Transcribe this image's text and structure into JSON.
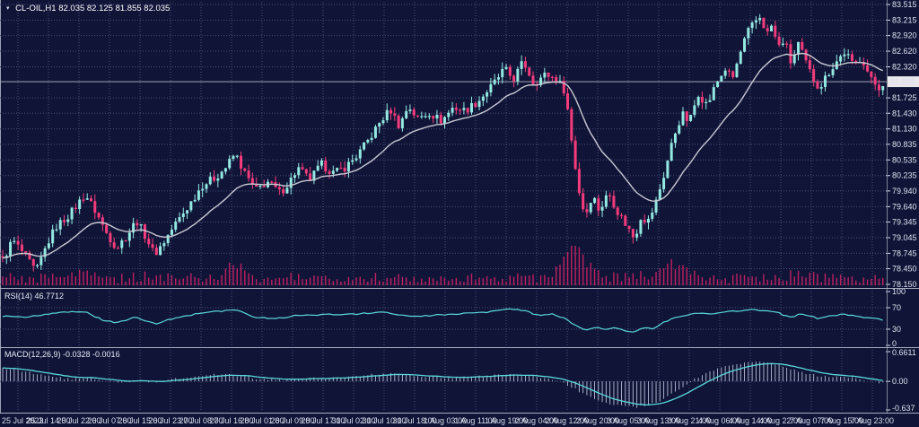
{
  "header": {
    "title": "CL-OIL,H1 82.035 82.125 81.855 82.035"
  },
  "icons": {
    "collapse": "▾"
  },
  "colors": {
    "background": "#101538",
    "grid": "#474d74",
    "bull": "#93e9e1",
    "bear": "#f53b7b",
    "ma_line": "#c9c9d2",
    "volume": "#c02060",
    "indicator_line": "#5ad9d9",
    "histogram": "#b8bdd4",
    "axis_text": "#dde1ee",
    "separator": "#a8adc0",
    "price_line": "#b6b6c0",
    "price_tag_bg": "#e8e8ec",
    "price_tag_text": "#14183a"
  },
  "main_panel": {
    "current_price": "82.035",
    "price_labels": [
      "83.515",
      "83.215",
      "82.920",
      "82.620",
      "82.320",
      "81.725",
      "81.430",
      "81.130",
      "80.835",
      "80.535",
      "80.235",
      "79.940",
      "79.640",
      "79.345",
      "79.045",
      "78.745",
      "78.450",
      "78.150"
    ],
    "price_values": [
      83.515,
      83.215,
      82.92,
      82.62,
      82.32,
      81.725,
      81.43,
      81.13,
      80.835,
      80.535,
      80.235,
      79.94,
      79.64,
      79.345,
      79.045,
      78.745,
      78.45,
      78.15
    ]
  },
  "rsi_panel": {
    "label": "RSI(14) 46.7712",
    "axis_labels": [
      "100",
      "70",
      "30",
      "0"
    ],
    "axis_values": [
      100,
      70,
      30,
      0
    ],
    "level_lines": [
      70,
      30
    ]
  },
  "macd_panel": {
    "label": "MACD(12,26,9) -0.0328 -0.0016",
    "axis_labels": [
      "0.6611",
      "0.00",
      "-0.637"
    ],
    "axis_values": [
      0.6611,
      0,
      -0.637
    ]
  },
  "time_axis": {
    "labels": [
      "25 Jul 2023",
      "25 Jul 14:00",
      "25 Jul 22:00",
      "26 Jul 07:00",
      "26 Jul 15:00",
      "26 Jul 23:00",
      "27 Jul 08:00",
      "27 Jul 16:00",
      "28 Jul 01:00",
      "28 Jul 09:00",
      "28 Jul 17:00",
      "31 Jul 02:00",
      "31 Jul 10:00",
      "31 Jul 18:00",
      "1 Aug 03:00",
      "1 Aug 11:00",
      "1 Aug 19:00",
      "2 Aug 04:00",
      "2 Aug 12:00",
      "2 Aug 20:00",
      "3 Aug 05:00",
      "3 Aug 13:00",
      "3 Aug 21:00",
      "4 Aug 06:00",
      "4 Aug 14:00",
      "4 Aug 22:00",
      "7 Aug 07:00",
      "7 Aug 15:00",
      "7 Aug 23:00"
    ]
  },
  "chart_data": {
    "type": "candlestick",
    "symbol": "CL-OIL",
    "timeframe": "H1",
    "ohlc": {
      "open": "82.035",
      "high": "82.125",
      "low": "81.855",
      "close": "82.035"
    },
    "bars": 230,
    "price_range": {
      "max": 83.515,
      "min": 78.15
    },
    "close_anchors": [
      [
        0,
        78.5
      ],
      [
        14,
        79.0
      ],
      [
        28,
        78.7
      ],
      [
        40,
        78.38
      ],
      [
        52,
        78.9
      ],
      [
        62,
        79.25
      ],
      [
        78,
        79.5
      ],
      [
        95,
        79.88
      ],
      [
        108,
        79.5
      ],
      [
        118,
        79.15
      ],
      [
        130,
        78.85
      ],
      [
        142,
        79.1
      ],
      [
        152,
        79.38
      ],
      [
        163,
        79.05
      ],
      [
        172,
        78.72
      ],
      [
        182,
        78.95
      ],
      [
        195,
        79.3
      ],
      [
        210,
        79.65
      ],
      [
        225,
        80.05
      ],
      [
        240,
        80.2
      ],
      [
        252,
        80.4
      ],
      [
        262,
        80.66
      ],
      [
        272,
        80.3
      ],
      [
        285,
        79.95
      ],
      [
        298,
        80.12
      ],
      [
        312,
        79.9
      ],
      [
        322,
        80.1
      ],
      [
        332,
        80.38
      ],
      [
        345,
        80.15
      ],
      [
        358,
        80.45
      ],
      [
        372,
        80.28
      ],
      [
        385,
        80.4
      ],
      [
        398,
        80.62
      ],
      [
        412,
        80.95
      ],
      [
        425,
        81.3
      ],
      [
        435,
        81.5
      ],
      [
        445,
        81.18
      ],
      [
        455,
        81.58
      ],
      [
        465,
        81.32
      ],
      [
        478,
        81.45
      ],
      [
        492,
        81.28
      ],
      [
        505,
        81.55
      ],
      [
        518,
        81.48
      ],
      [
        532,
        81.65
      ],
      [
        548,
        81.95
      ],
      [
        562,
        82.28
      ],
      [
        572,
        82.08
      ],
      [
        583,
        82.42
      ],
      [
        595,
        82.0
      ],
      [
        608,
        82.18
      ],
      [
        620,
        82.08
      ],
      [
        630,
        81.85
      ],
      [
        638,
        80.75
      ],
      [
        645,
        79.95
      ],
      [
        652,
        79.45
      ],
      [
        660,
        79.88
      ],
      [
        668,
        79.55
      ],
      [
        678,
        79.92
      ],
      [
        688,
        79.55
      ],
      [
        698,
        79.28
      ],
      [
        707,
        79.02
      ],
      [
        714,
        79.45
      ],
      [
        722,
        79.35
      ],
      [
        730,
        79.68
      ],
      [
        740,
        80.25
      ],
      [
        750,
        80.95
      ],
      [
        760,
        81.42
      ],
      [
        768,
        81.25
      ],
      [
        778,
        81.82
      ],
      [
        788,
        81.58
      ],
      [
        798,
        82.0
      ],
      [
        808,
        82.28
      ],
      [
        816,
        82.08
      ],
      [
        823,
        82.48
      ],
      [
        832,
        82.95
      ],
      [
        841,
        83.18
      ],
      [
        848,
        83.3
      ],
      [
        854,
        82.92
      ],
      [
        860,
        83.12
      ],
      [
        867,
        82.68
      ],
      [
        874,
        82.85
      ],
      [
        882,
        82.35
      ],
      [
        889,
        82.78
      ],
      [
        896,
        82.48
      ],
      [
        905,
        82.12
      ],
      [
        913,
        81.92
      ],
      [
        922,
        82.18
      ],
      [
        932,
        82.42
      ],
      [
        942,
        82.62
      ],
      [
        951,
        82.32
      ],
      [
        960,
        82.52
      ],
      [
        970,
        82.08
      ],
      [
        979,
        81.92
      ],
      [
        985,
        82.035
      ]
    ],
    "rsi_anchors": [
      [
        0,
        55
      ],
      [
        30,
        52
      ],
      [
        60,
        60
      ],
      [
        95,
        63
      ],
      [
        115,
        46
      ],
      [
        132,
        42
      ],
      [
        150,
        52
      ],
      [
        172,
        40
      ],
      [
        195,
        51
      ],
      [
        225,
        60
      ],
      [
        262,
        66
      ],
      [
        285,
        52
      ],
      [
        310,
        50
      ],
      [
        332,
        56
      ],
      [
        360,
        57
      ],
      [
        395,
        58
      ],
      [
        425,
        62
      ],
      [
        445,
        57
      ],
      [
        465,
        54
      ],
      [
        485,
        56
      ],
      [
        510,
        58
      ],
      [
        545,
        62
      ],
      [
        565,
        67
      ],
      [
        585,
        65
      ],
      [
        600,
        55
      ],
      [
        615,
        58
      ],
      [
        630,
        50
      ],
      [
        642,
        36
      ],
      [
        652,
        28
      ],
      [
        662,
        34
      ],
      [
        672,
        30
      ],
      [
        684,
        33
      ],
      [
        695,
        28
      ],
      [
        707,
        25
      ],
      [
        716,
        33
      ],
      [
        727,
        31
      ],
      [
        740,
        43
      ],
      [
        752,
        52
      ],
      [
        762,
        55
      ],
      [
        775,
        60
      ],
      [
        790,
        58
      ],
      [
        802,
        62
      ],
      [
        815,
        63
      ],
      [
        828,
        65
      ],
      [
        840,
        66
      ],
      [
        852,
        65
      ],
      [
        862,
        64
      ],
      [
        872,
        57
      ],
      [
        882,
        52
      ],
      [
        891,
        59
      ],
      [
        900,
        55
      ],
      [
        912,
        50
      ],
      [
        924,
        54
      ],
      [
        935,
        57
      ],
      [
        945,
        57
      ],
      [
        955,
        53
      ],
      [
        966,
        51
      ],
      [
        976,
        49
      ],
      [
        985,
        46.8
      ]
    ],
    "macd_hist_anchors": [
      [
        0,
        0.3
      ],
      [
        18,
        0.26
      ],
      [
        38,
        0.18
      ],
      [
        58,
        0.1
      ],
      [
        78,
        0.05
      ],
      [
        98,
        0.09
      ],
      [
        118,
        0.02
      ],
      [
        135,
        -0.02
      ],
      [
        155,
        0.02
      ],
      [
        175,
        -0.02
      ],
      [
        195,
        0.05
      ],
      [
        222,
        0.12
      ],
      [
        248,
        0.16
      ],
      [
        268,
        0.12
      ],
      [
        290,
        0.05
      ],
      [
        315,
        0.02
      ],
      [
        340,
        0.06
      ],
      [
        368,
        0.08
      ],
      [
        395,
        0.11
      ],
      [
        420,
        0.16
      ],
      [
        440,
        0.18
      ],
      [
        462,
        0.13
      ],
      [
        482,
        0.09
      ],
      [
        505,
        0.08
      ],
      [
        528,
        0.11
      ],
      [
        550,
        0.14
      ],
      [
        570,
        0.16
      ],
      [
        590,
        0.12
      ],
      [
        608,
        0.06
      ],
      [
        624,
        0.0
      ],
      [
        638,
        -0.14
      ],
      [
        652,
        -0.3
      ],
      [
        666,
        -0.42
      ],
      [
        680,
        -0.5
      ],
      [
        694,
        -0.55
      ],
      [
        708,
        -0.575
      ],
      [
        722,
        -0.53
      ],
      [
        736,
        -0.42
      ],
      [
        750,
        -0.25
      ],
      [
        764,
        -0.08
      ],
      [
        778,
        0.1
      ],
      [
        792,
        0.22
      ],
      [
        806,
        0.31
      ],
      [
        820,
        0.38
      ],
      [
        834,
        0.43
      ],
      [
        846,
        0.45
      ],
      [
        858,
        0.42
      ],
      [
        870,
        0.35
      ],
      [
        882,
        0.27
      ],
      [
        895,
        0.19
      ],
      [
        910,
        0.13
      ],
      [
        925,
        0.1
      ],
      [
        940,
        0.1
      ],
      [
        954,
        0.06
      ],
      [
        966,
        0.02
      ],
      [
        977,
        -0.02
      ],
      [
        985,
        -0.033
      ]
    ]
  }
}
